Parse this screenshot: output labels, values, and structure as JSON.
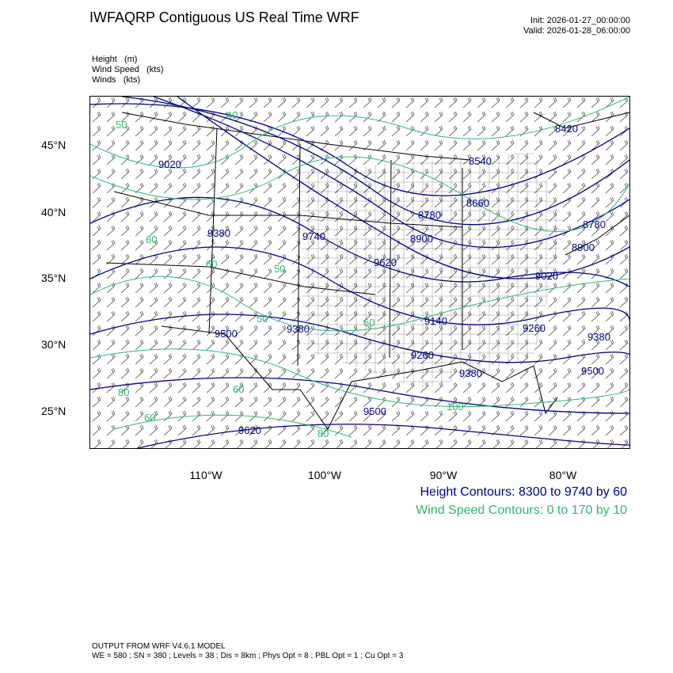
{
  "title": "IWFAQRP Contiguous US Real Time WRF",
  "init": "Init: 2026-01-27_00:00:00",
  "valid": "Valid: 2026-01-28_06:00:00",
  "fields": [
    {
      "name": "Height",
      "units": "(m)"
    },
    {
      "name": "Wind Speed",
      "units": "(kts)"
    },
    {
      "name": "Winds",
      "units": "(kts)"
    }
  ],
  "lat_labels": [
    "45°N",
    "40°N",
    "35°N",
    "30°N",
    "25°N"
  ],
  "lon_labels": [
    "110°W",
    "100°W",
    "90°W",
    "80°W"
  ],
  "height_contours_label": "Height Contours: 8300 to 9740 by 60",
  "wind_contours_label": "Wind Speed Contours: 0 to 170 by 10",
  "footer": {
    "line1": "OUTPUT FROM WRF V4.6.1 MODEL",
    "line2": "WE = 580 ; SN = 380 ; Levels = 38 ; Dis = 8km ; Phys Opt = 8 ; PBL Opt = 1 ; Cu Opt = 3"
  },
  "colors": {
    "height": "#00008b",
    "wind_speed": "#2eb872",
    "barbs": "#000000"
  },
  "height_labels": [
    "8420",
    "8540",
    "9020",
    "8660",
    "8780",
    "8780",
    "9380",
    "9740",
    "8900",
    "8900",
    "9620",
    "9020",
    "9140",
    "9380",
    "9500",
    "9260",
    "9380",
    "9260",
    "9500",
    "9380",
    "9500",
    "9620"
  ],
  "wind_labels": [
    "40",
    "50",
    "60",
    "60",
    "50",
    "80",
    "60",
    "60",
    "80",
    "100",
    "60",
    "50"
  ]
}
